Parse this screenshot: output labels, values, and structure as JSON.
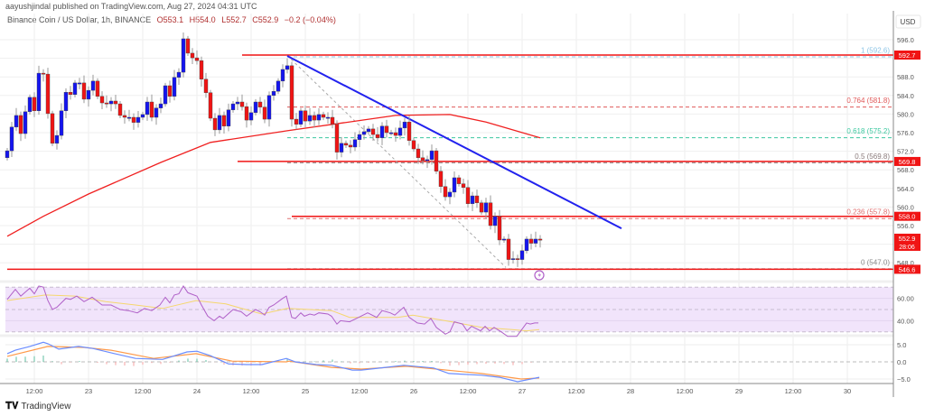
{
  "header": {
    "published": "aayushjindal published on TradingView.com, Aug 27, 2024 04:31 UTC"
  },
  "legend": {
    "symbol": "Binance Coin / US Dollar, 1h, BINANCE",
    "open": "O553.1",
    "high": "H554.0",
    "low": "L552.7",
    "close": "C552.9",
    "change": "−0.2 (−0.04%)"
  },
  "footer": {
    "brand": "TradingView",
    "logo_text": "TV"
  },
  "colors": {
    "bull": "#1414f0",
    "bear": "#f01414",
    "ma": "#f02020",
    "trend": "#2222ee",
    "rsi": "#b060c8",
    "rsi_ma": "#f5d76e",
    "macd": "#6a8cff",
    "signal": "#ff9a4a",
    "band": "#f1e4fb"
  },
  "chart_data": {
    "type": "candlestick",
    "title": "Binance Coin / US Dollar, 1h, BINANCE",
    "currency_label": "USD",
    "ylim": [
      544,
      598
    ],
    "y_ticks": [
      596,
      588,
      584,
      580,
      576,
      572,
      568,
      564,
      560,
      556,
      548
    ],
    "first_open": 570.6,
    "closes": [
      572.1,
      577.2,
      579.7,
      575.8,
      580.5,
      583.6,
      580.7,
      588.8,
      588.6,
      580.1,
      573.7,
      575.4,
      580.7,
      584.7,
      584.2,
      586.7,
      586.7,
      583.2,
      585.1,
      587.1,
      583.8,
      582.4,
      582.2,
      582.8,
      582.2,
      579.7,
      579.3,
      579.3,
      578.2,
      579.3,
      579.9,
      582.6,
      579.3,
      581.3,
      582.2,
      586.1,
      583.8,
      587.9,
      589.0,
      596.2,
      593.1,
      592.1,
      591.5,
      587.5,
      584.6,
      579.1,
      576.6,
      579.7,
      577.4,
      580.9,
      582.2,
      582.6,
      581.6,
      578.7,
      580.3,
      582.6,
      581.5,
      578.9,
      584.0,
      584.9,
      587.1,
      589.6,
      590.4,
      578.9,
      577.8,
      580.7,
      578.5,
      579.7,
      578.7,
      579.9,
      579.3,
      579.3,
      577.8,
      571.8,
      573.7,
      573.3,
      572.9,
      574.5,
      575.6,
      576.2,
      576.8,
      575.6,
      574.9,
      577.4,
      576.0,
      576.0,
      575.4,
      577.0,
      578.3,
      574.3,
      572.5,
      570.6,
      570.0,
      570.2,
      572.1,
      567.7,
      564.4,
      562.2,
      563.2,
      566.3,
      565.0,
      564.2,
      560.7,
      562.4,
      560.9,
      558.9,
      560.9,
      556.0,
      558.0,
      552.9,
      553.1,
      548.7,
      548.9,
      548.7,
      550.6,
      553.1,
      552.2,
      553.1,
      552.9
    ],
    "moving_average": [
      [
        0,
        553.7
      ],
      [
        8,
        558.0
      ],
      [
        18,
        562.8
      ],
      [
        34,
        569.6
      ],
      [
        45,
        573.9
      ],
      [
        62,
        576.4
      ],
      [
        86,
        579.7
      ],
      [
        98,
        579.9
      ],
      [
        106,
        578.3
      ],
      [
        118,
        574.9
      ]
    ],
    "horizontal_levels": [
      {
        "price": 592.7,
        "label": "592.7",
        "from_index": 52
      },
      {
        "price": 569.8,
        "label": "569.8",
        "from_index": 51
      },
      {
        "price": 558.0,
        "label": "558.0",
        "from_index": 63
      },
      {
        "price": 546.6,
        "label": "546.6",
        "from_index": 0
      }
    ],
    "last_price": {
      "price": 552.9,
      "label": "552.9",
      "countdown": "28:06"
    },
    "fib_levels": [
      {
        "ratio": "1",
        "price": 592.6,
        "label": "1 (592.6)",
        "color": "#8cc4e6"
      },
      {
        "ratio": "0.764",
        "price": 581.8,
        "label": "0.764 (581.8)",
        "color": "#e05a5a"
      },
      {
        "ratio": "0.618",
        "price": 575.2,
        "label": "0.618 (575.2)",
        "color": "#3cc8a0"
      },
      {
        "ratio": "0.5",
        "price": 569.8,
        "label": "0.5 (569.8)",
        "color": "#8a7a7a"
      },
      {
        "ratio": "0.236",
        "price": 557.8,
        "label": "0.236 (557.8)",
        "color": "#e07070"
      },
      {
        "ratio": "0",
        "price": 547.0,
        "label": "0 (547.0)",
        "color": "#8a8a8a"
      }
    ],
    "fib_from_index": 62,
    "trendline": [
      [
        62,
        592.5
      ],
      [
        136,
        555.4
      ]
    ],
    "fib_diagonal": [
      [
        62,
        592.6
      ],
      [
        110.4,
        547.0
      ]
    ],
    "time_labels": [
      {
        "index": 6,
        "label": "12:00"
      },
      {
        "index": 18,
        "label": "23"
      },
      {
        "index": 30,
        "label": "12:00"
      },
      {
        "index": 42,
        "label": "24"
      },
      {
        "index": 54,
        "label": "12:00"
      },
      {
        "index": 66,
        "label": "25"
      },
      {
        "index": 78,
        "label": "12:00"
      },
      {
        "index": 90,
        "label": "26"
      },
      {
        "index": 102,
        "label": "12:00"
      },
      {
        "index": 114,
        "label": "27"
      },
      {
        "index": 126,
        "label": "12:00"
      },
      {
        "index": 138,
        "label": "28"
      },
      {
        "index": 150,
        "label": "12:00"
      },
      {
        "index": 162,
        "label": "29"
      },
      {
        "index": 174,
        "label": "12:00"
      },
      {
        "index": 186,
        "label": "30"
      }
    ],
    "rsi": {
      "ticks": [
        {
          "value": 60,
          "label": "60.00"
        },
        {
          "value": 40,
          "label": "40.00"
        }
      ],
      "band": [
        30,
        70
      ],
      "values": [
        [
          0,
          59
        ],
        [
          1.8,
          68
        ],
        [
          3,
          62
        ],
        [
          5,
          69
        ],
        [
          6,
          64
        ],
        [
          7,
          71
        ],
        [
          8,
          70
        ],
        [
          9,
          58
        ],
        [
          10,
          50
        ],
        [
          11,
          52
        ],
        [
          13,
          60
        ],
        [
          14,
          59
        ],
        [
          15.4,
          62
        ],
        [
          17,
          57
        ],
        [
          18.8,
          61
        ],
        [
          21,
          54
        ],
        [
          23,
          54
        ],
        [
          25,
          50
        ],
        [
          26.8,
          49
        ],
        [
          28.8,
          47
        ],
        [
          30.4,
          51
        ],
        [
          32,
          49
        ],
        [
          33.8,
          54
        ],
        [
          35,
          61
        ],
        [
          36,
          56
        ],
        [
          37,
          63
        ],
        [
          38,
          64
        ],
        [
          39,
          71
        ],
        [
          40,
          65
        ],
        [
          42,
          62
        ],
        [
          43,
          54
        ],
        [
          44.4,
          44
        ],
        [
          45.8,
          40
        ],
        [
          47,
          44
        ],
        [
          47.8,
          42
        ],
        [
          50,
          50
        ],
        [
          51.8,
          48
        ],
        [
          53,
          44
        ],
        [
          55,
          50
        ],
        [
          56,
          48
        ],
        [
          57,
          45
        ],
        [
          58,
          52
        ],
        [
          59,
          54
        ],
        [
          61,
          60
        ],
        [
          61.8,
          62
        ],
        [
          63,
          43
        ],
        [
          63.8,
          42
        ],
        [
          65,
          47
        ],
        [
          65.8,
          44
        ],
        [
          67,
          46
        ],
        [
          68,
          45
        ],
        [
          69,
          47
        ],
        [
          71,
          46
        ],
        [
          71.8,
          44
        ],
        [
          73,
          37
        ],
        [
          73.8,
          40
        ],
        [
          75.8,
          39
        ],
        [
          77.8,
          43
        ],
        [
          79.8,
          47
        ],
        [
          81.8,
          43
        ],
        [
          83,
          49
        ],
        [
          84.8,
          47
        ],
        [
          85.8,
          45
        ],
        [
          87.8,
          52
        ],
        [
          89,
          43
        ],
        [
          90.8,
          38
        ],
        [
          92.4,
          37
        ],
        [
          93.8,
          42
        ],
        [
          95,
          34
        ],
        [
          97,
          28
        ],
        [
          98,
          30
        ],
        [
          99,
          39
        ],
        [
          100.8,
          37
        ],
        [
          101.8,
          31
        ],
        [
          102.8,
          35
        ],
        [
          104.8,
          31
        ],
        [
          105.8,
          35
        ],
        [
          106.8,
          31
        ],
        [
          107.8,
          34
        ],
        [
          109.4,
          30
        ],
        [
          110.8,
          26
        ],
        [
          112.8,
          26
        ],
        [
          115,
          38
        ],
        [
          115.8,
          37
        ],
        [
          116.8,
          38
        ],
        [
          117.6,
          38
        ]
      ],
      "ma": [
        [
          0,
          58
        ],
        [
          8.4,
          63
        ],
        [
          15,
          62
        ],
        [
          21.8,
          57
        ],
        [
          28.4,
          54
        ],
        [
          34.4,
          51
        ],
        [
          41.8,
          58
        ],
        [
          48.4,
          55
        ],
        [
          56.4,
          46
        ],
        [
          62,
          51
        ],
        [
          71.8,
          49
        ],
        [
          75.8,
          43
        ],
        [
          86.4,
          43
        ],
        [
          89.8,
          45
        ],
        [
          98.4,
          39
        ],
        [
          105,
          34
        ],
        [
          111.8,
          32
        ],
        [
          115,
          31
        ],
        [
          117.8,
          32
        ]
      ]
    },
    "macd": {
      "ticks": [
        {
          "value": 5,
          "label": "5.0"
        },
        {
          "value": 0,
          "label": "0.0"
        },
        {
          "value": -5,
          "label": "−5.0"
        }
      ],
      "macd": [
        [
          0,
          2.4
        ],
        [
          1.8,
          3.4
        ],
        [
          5,
          4.5
        ],
        [
          8,
          5.7
        ],
        [
          9,
          5.3
        ],
        [
          11.4,
          3.7
        ],
        [
          15.8,
          4.5
        ],
        [
          19,
          3.9
        ],
        [
          23.8,
          2.4
        ],
        [
          28.4,
          1.0
        ],
        [
          34.4,
          0.7
        ],
        [
          39.8,
          2.9
        ],
        [
          42,
          3.1
        ],
        [
          45,
          1.8
        ],
        [
          49,
          -0.6
        ],
        [
          53,
          -0.8
        ],
        [
          56.4,
          -0.8
        ],
        [
          61.8,
          1.0
        ],
        [
          63.8,
          0
        ],
        [
          68.4,
          -0.8
        ],
        [
          71.8,
          -1.0
        ],
        [
          76.4,
          -2.4
        ],
        [
          78.4,
          -2.4
        ],
        [
          83.8,
          -1.6
        ],
        [
          87.8,
          -1.0
        ],
        [
          94.4,
          -1.8
        ],
        [
          97.8,
          -3.4
        ],
        [
          105,
          -3.9
        ],
        [
          109,
          -4.5
        ],
        [
          113,
          -5.8
        ],
        [
          117.8,
          -4.5
        ]
      ],
      "signal": [
        [
          0,
          1.6
        ],
        [
          9,
          4.5
        ],
        [
          17,
          4.2
        ],
        [
          23,
          3.4
        ],
        [
          32.4,
          1.0
        ],
        [
          41.8,
          2.4
        ],
        [
          49.8,
          0.2
        ],
        [
          61.8,
          0
        ],
        [
          62.4,
          0.2
        ],
        [
          71.8,
          -1.6
        ],
        [
          78.4,
          -2.1
        ],
        [
          88.4,
          -1.3
        ],
        [
          95,
          -2.1
        ],
        [
          105,
          -3.4
        ],
        [
          113.8,
          -5.0
        ],
        [
          117.8,
          -4.7
        ]
      ]
    }
  }
}
